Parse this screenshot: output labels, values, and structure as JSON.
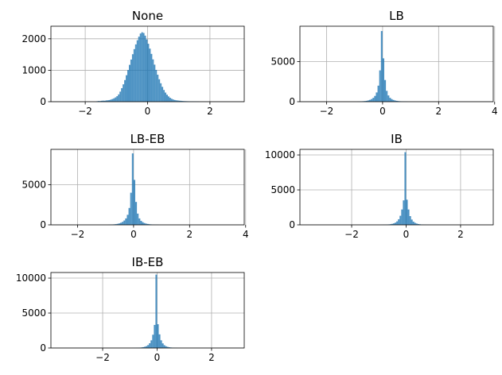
{
  "chart_data": [
    {
      "type": "bar",
      "title": "None",
      "xlabel": "",
      "ylabel": "",
      "grid": true,
      "color": "#1f77b4",
      "xlim": [
        -3.1,
        3.1
      ],
      "ylim": [
        0,
        2400
      ],
      "xticks": [
        -2,
        0,
        2
      ],
      "xtick_labels": [
        "−2",
        "0",
        "2"
      ],
      "yticks": [
        0,
        1000,
        2000
      ],
      "ytick_labels": [
        "0",
        "1000",
        "2000"
      ],
      "bins": {
        "start": -1.65,
        "width": 0.05,
        "counts": [
          14,
          22,
          20,
          29,
          34,
          31,
          41,
          45,
          52,
          67,
          86,
          108,
          138,
          176,
          232,
          320,
          430,
          552,
          688,
          842,
          1006,
          1172,
          1340,
          1510,
          1672,
          1822,
          1954,
          2070,
          2168,
          2208,
          2185,
          2100,
          1980,
          1842,
          1688,
          1520,
          1346,
          1178,
          1012,
          858,
          714,
          586,
          472,
          372,
          290,
          222,
          168,
          124,
          92,
          70,
          54,
          44,
          38,
          32,
          28,
          22,
          18,
          16,
          14,
          12,
          10,
          10,
          9,
          8,
          7,
          6
        ]
      }
    },
    {
      "type": "bar",
      "title": "LB",
      "xlabel": "",
      "ylabel": "",
      "grid": true,
      "color": "#1f77b4",
      "xlim": [
        -2.95,
        3.95
      ],
      "ylim": [
        0,
        9400
      ],
      "xticks": [
        -2,
        0,
        2,
        4
      ],
      "xtick_labels": [
        "−2",
        "0",
        "2",
        "4"
      ],
      "yticks": [
        0,
        5000
      ],
      "ytick_labels": [
        "0",
        "5000"
      ],
      "bins": {
        "start": -0.9,
        "width": 0.06,
        "counts": [
          25,
          35,
          45,
          60,
          80,
          110,
          160,
          230,
          330,
          480,
          720,
          1150,
          2000,
          3900,
          8800,
          5400,
          2700,
          1350,
          780,
          480,
          320,
          220,
          150,
          105,
          75,
          55,
          40,
          32,
          26,
          20
        ]
      }
    },
    {
      "type": "bar",
      "title": "LB-EB",
      "xlabel": "",
      "ylabel": "",
      "grid": true,
      "color": "#1f77b4",
      "xlim": [
        -2.95,
        3.95
      ],
      "ylim": [
        0,
        9400
      ],
      "xticks": [
        -2,
        0,
        2,
        4
      ],
      "xtick_labels": [
        "−2",
        "0",
        "2",
        "4"
      ],
      "yticks": [
        0,
        5000
      ],
      "ytick_labels": [
        "0",
        "5000"
      ],
      "bins": {
        "start": -0.9,
        "width": 0.06,
        "counts": [
          25,
          35,
          48,
          65,
          90,
          125,
          180,
          260,
          370,
          540,
          800,
          1250,
          2100,
          4000,
          8900,
          5600,
          2850,
          1400,
          800,
          500,
          330,
          225,
          155,
          110,
          78,
          56,
          42,
          33,
          26,
          20
        ]
      }
    },
    {
      "type": "bar",
      "title": "IB",
      "xlabel": "",
      "ylabel": "",
      "grid": true,
      "color": "#1f77b4",
      "xlim": [
        -3.9,
        3.2
      ],
      "ylim": [
        0,
        10800
      ],
      "xticks": [
        -2,
        0,
        2
      ],
      "xtick_labels": [
        "−2",
        "0",
        "2"
      ],
      "yticks": [
        0,
        5000,
        10000
      ],
      "ytick_labels": [
        "0",
        "5000",
        "10000"
      ],
      "bins": {
        "start": -0.9,
        "width": 0.06,
        "counts": [
          15,
          22,
          32,
          45,
          65,
          95,
          140,
          210,
          320,
          500,
          800,
          1300,
          2200,
          3500,
          10400,
          3600,
          2200,
          1250,
          760,
          460,
          290,
          185,
          120,
          80,
          55,
          38,
          26,
          18,
          12,
          8
        ]
      }
    },
    {
      "type": "bar",
      "title": "IB-EB",
      "xlabel": "",
      "ylabel": "",
      "grid": true,
      "color": "#1f77b4",
      "xlim": [
        -3.9,
        3.2
      ],
      "ylim": [
        0,
        10800
      ],
      "xticks": [
        -2,
        0,
        2
      ],
      "xtick_labels": [
        "−2",
        "0",
        "2"
      ],
      "yticks": [
        0,
        5000,
        10000
      ],
      "ytick_labels": [
        "0",
        "5000",
        "10000"
      ],
      "bins": {
        "start": -0.9,
        "width": 0.06,
        "counts": [
          12,
          18,
          26,
          38,
          55,
          80,
          120,
          180,
          270,
          420,
          680,
          1100,
          1900,
          3300,
          10500,
          3400,
          1950,
          1100,
          660,
          400,
          250,
          160,
          105,
          70,
          48,
          33,
          22,
          15,
          10,
          7
        ]
      }
    }
  ]
}
